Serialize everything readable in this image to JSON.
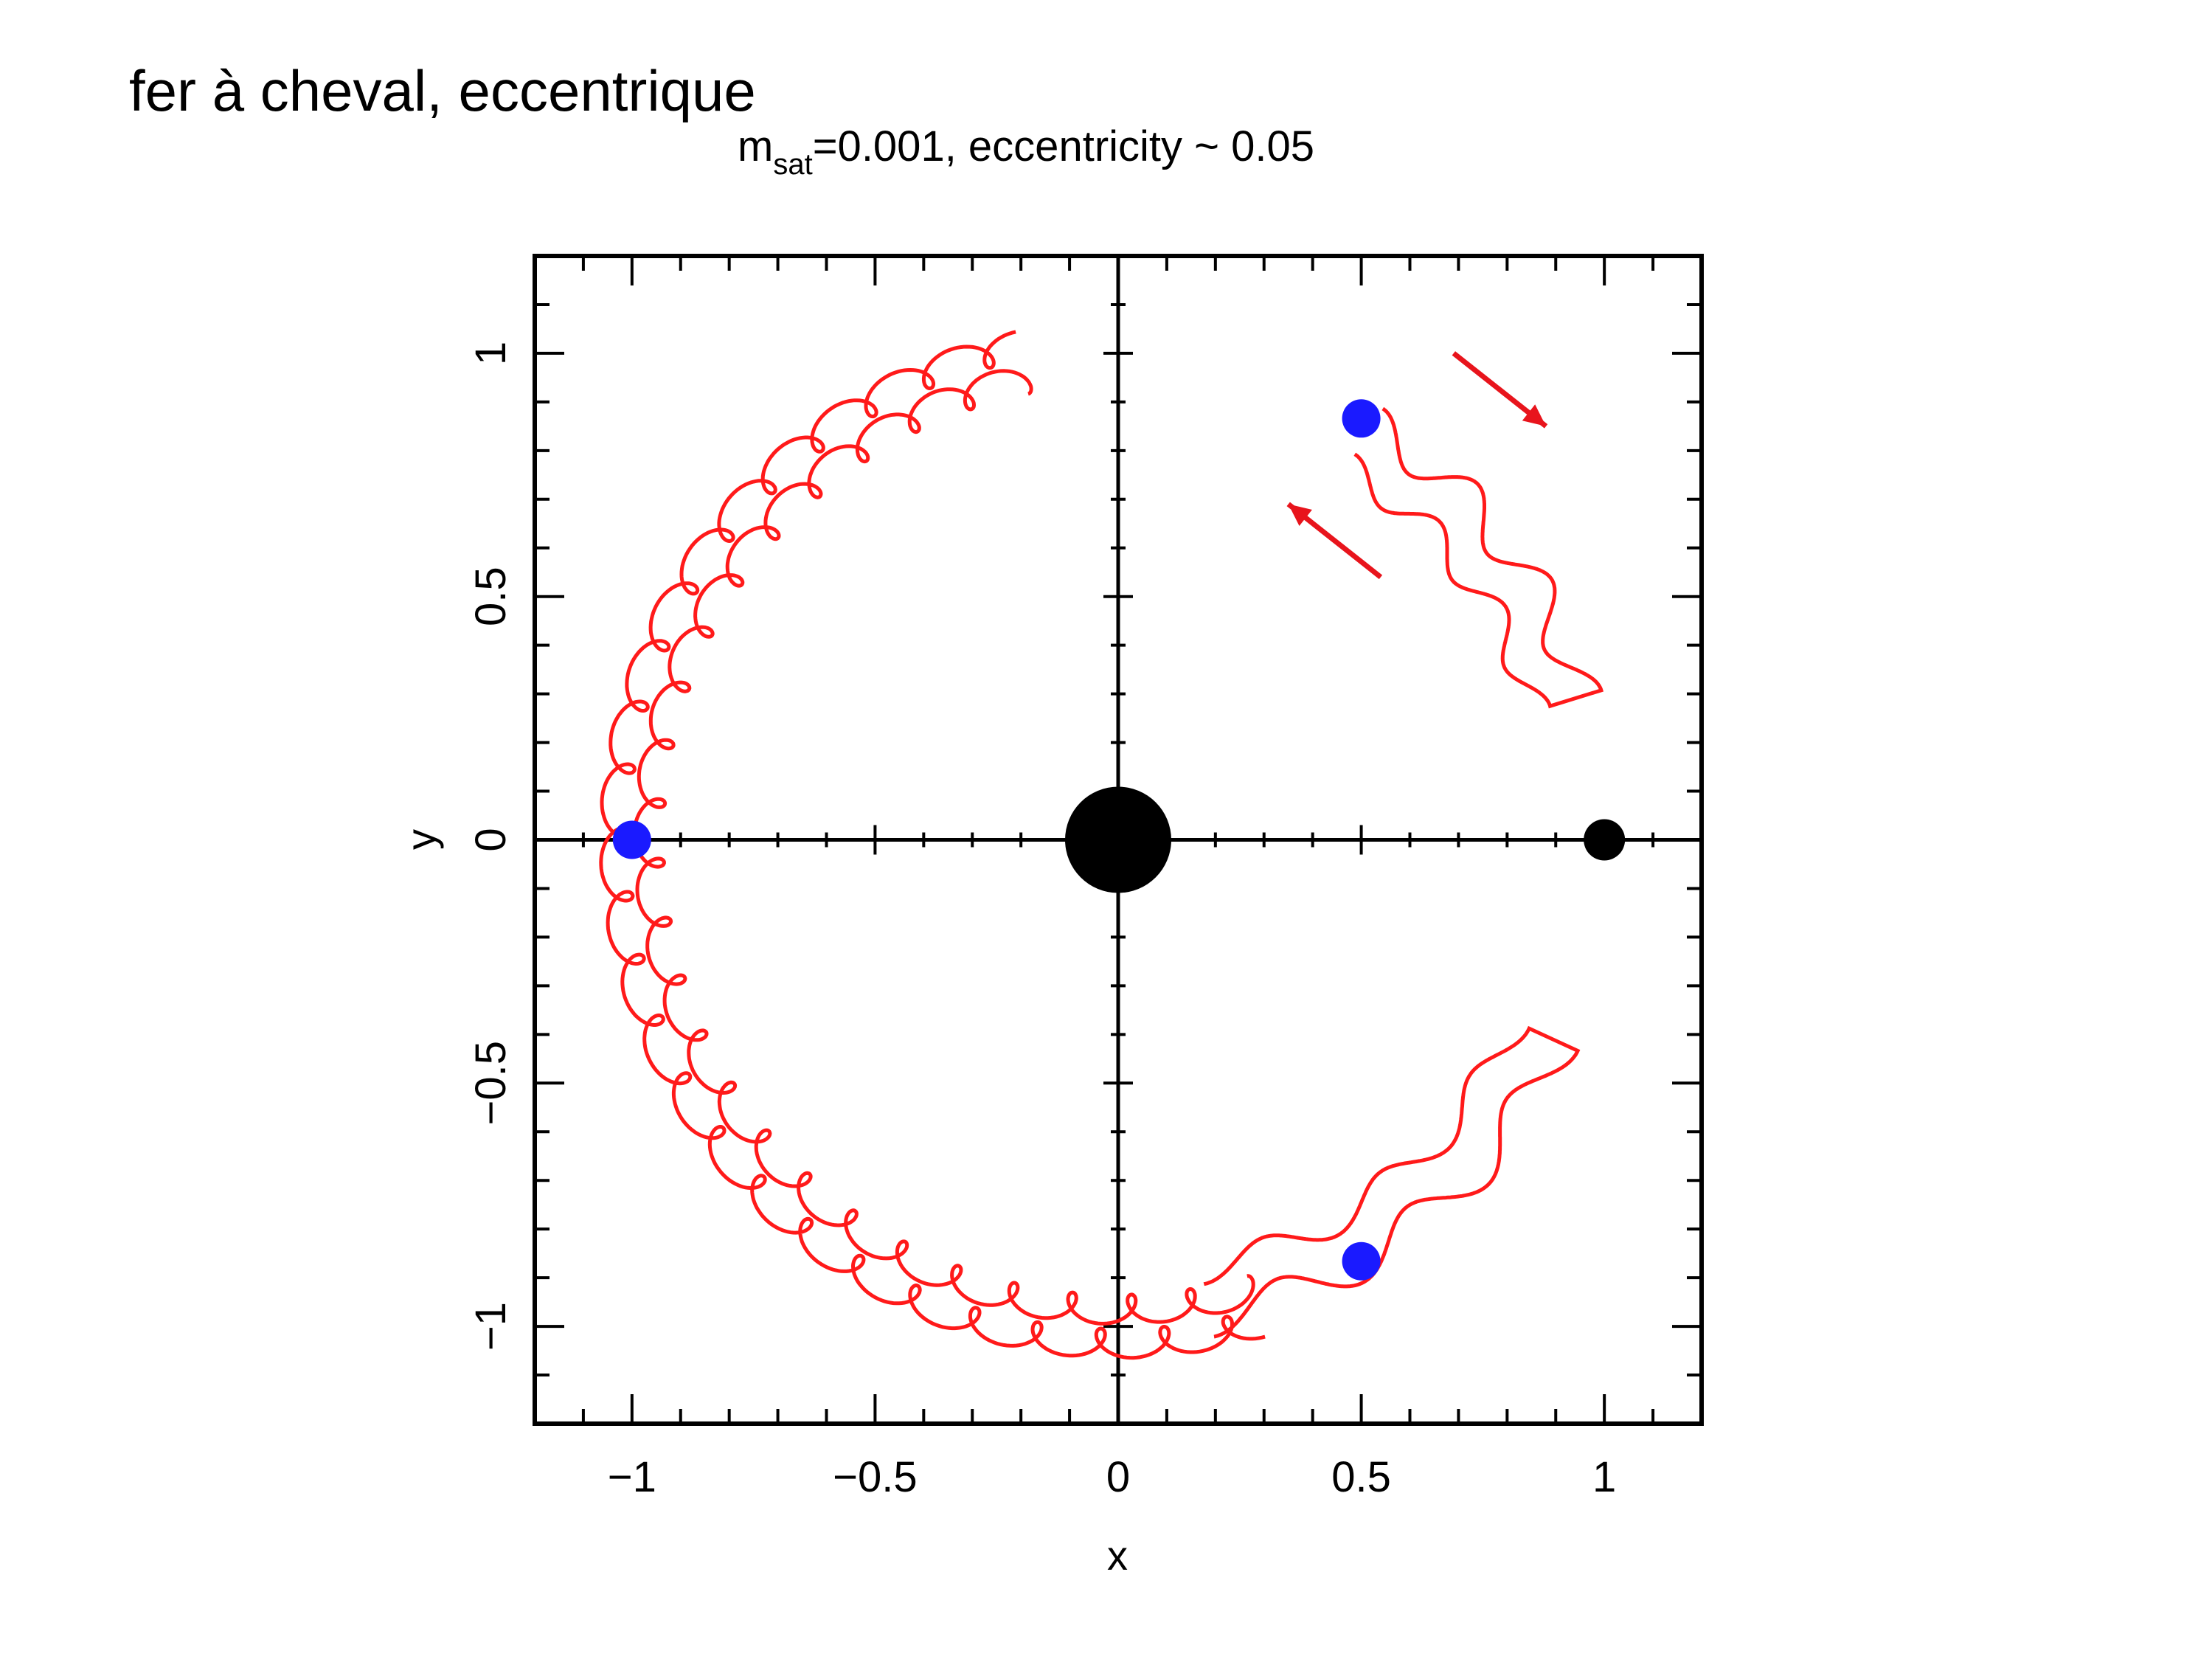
{
  "slide_title": "fer à cheval, eccentrique",
  "colors": {
    "trajectory": "#ff1a1a",
    "arrow": "#e8141c",
    "marker_blue": "#1a1aff",
    "marker_black": "#000000",
    "axes": "#000000"
  },
  "chart_data": {
    "type": "line",
    "title_main": "m",
    "title_sub": "sat",
    "title_rest": "=0.001, eccentricity ~ 0.05",
    "xlabel": "x",
    "ylabel": "y",
    "xlim": [
      -1.2,
      1.2
    ],
    "ylim": [
      -1.2,
      1.2
    ],
    "x_ticks": [
      -1,
      -0.5,
      0,
      0.5,
      1
    ],
    "x_tick_labels": [
      "−1",
      "−0.5",
      "0",
      "0.5",
      "1"
    ],
    "y_ticks": [
      -1,
      -0.5,
      0,
      0.5,
      1
    ],
    "y_tick_labels": [
      "−1",
      "−0.5",
      "0",
      "0.5",
      "1"
    ],
    "cross_axes_through_origin": true,
    "series": [
      {
        "type": "trajectory",
        "shape": "horseshoe",
        "points": []
      }
    ],
    "markers": [
      {
        "label": "central",
        "x": 0,
        "y": 0,
        "color": "black",
        "size": "large"
      },
      {
        "label": "satellite",
        "x": 1,
        "y": 0,
        "color": "black",
        "size": "small"
      },
      {
        "label": "L4",
        "x": 0.5,
        "y": 0.866,
        "color": "blue",
        "size": "medium"
      },
      {
        "label": "L5",
        "x": 0.5,
        "y": -0.866,
        "color": "blue",
        "size": "medium"
      },
      {
        "label": "L3",
        "x": -1,
        "y": 0,
        "color": "blue",
        "size": "medium"
      }
    ],
    "arrows": [
      {
        "from": [
          0.69,
          1.0
        ],
        "to": [
          0.88,
          0.85
        ]
      },
      {
        "from": [
          0.54,
          0.54
        ],
        "to": [
          0.35,
          0.69
        ]
      }
    ]
  }
}
